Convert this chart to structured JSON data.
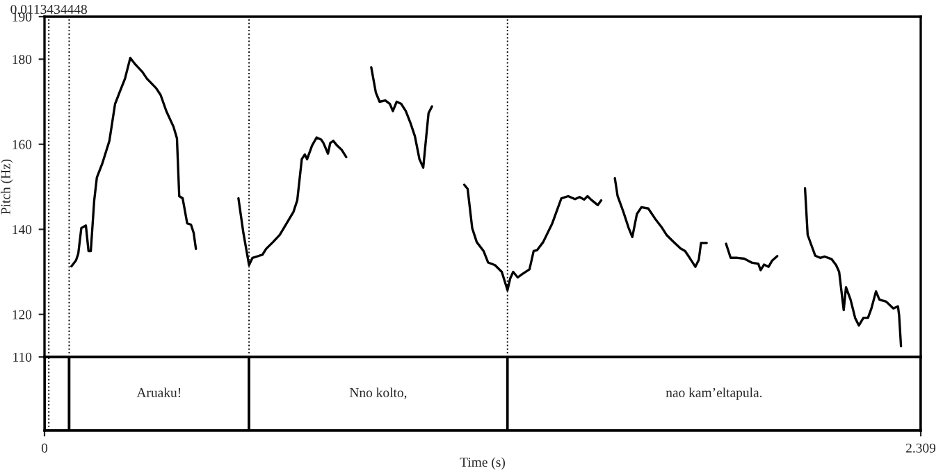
{
  "chart_data": [
    {
      "type": "line",
      "ylabel": "Pitch (Hz)",
      "xlim": [
        0,
        2.309
      ],
      "ylim": [
        110,
        190
      ],
      "yticks": [
        110,
        120,
        140,
        160,
        180,
        190
      ],
      "tick_labels": "y",
      "grid": false,
      "marker": "none",
      "line_style": "solid",
      "ref_lines": [
        {
          "axis": "x",
          "value": 0.0113434448,
          "label": "0.0113434448",
          "line_style": "dotted",
          "color": "#000000"
        },
        {
          "axis": "x",
          "value": 0.065,
          "line_style": "dotted",
          "color": "#000000"
        },
        {
          "axis": "x",
          "value": 0.539,
          "line_style": "dotted",
          "color": "#000000"
        },
        {
          "axis": "x",
          "value": 1.22,
          "line_style": "dotted",
          "color": "#000000"
        }
      ],
      "series": [
        {
          "color": "#000000",
          "x": [
            0.071,
            0.083,
            0.089,
            0.097,
            0.109,
            0.116,
            0.122,
            0.131,
            0.138,
            0.152,
            0.171,
            0.186,
            0.2,
            0.212,
            0.226,
            0.24,
            0.258,
            0.27,
            0.294,
            0.306,
            0.321,
            0.34,
            0.349,
            0.355,
            0.364,
            0.376,
            0.386,
            0.393,
            0.399,
            0.45,
            0.511,
            0.524,
            0.539,
            0.548,
            0.566,
            0.574,
            0.584,
            0.602,
            0.62,
            0.638,
            0.656,
            0.666,
            0.678,
            0.686,
            0.692,
            0.705,
            0.717,
            0.729,
            0.735,
            0.747,
            0.753,
            0.761,
            0.771,
            0.783,
            0.795,
            0.83,
            0.861,
            0.873,
            0.883,
            0.898,
            0.91,
            0.918,
            0.928,
            0.94,
            0.952,
            0.964,
            0.976,
            0.988,
            0.998,
            1.006,
            1.012,
            1.021,
            1.06,
            1.106,
            1.115,
            1.127,
            1.139,
            1.157,
            1.169,
            1.187,
            1.205,
            1.22,
            1.227,
            1.235,
            1.247,
            1.259,
            1.278,
            1.289,
            1.298,
            1.314,
            1.338,
            1.362,
            1.38,
            1.398,
            1.41,
            1.422,
            1.431,
            1.44,
            1.458,
            1.467,
            1.485,
            1.503,
            1.51,
            1.525,
            1.539,
            1.549,
            1.561,
            1.573,
            1.591,
            1.609,
            1.627,
            1.639,
            1.657,
            1.676,
            1.688,
            1.7,
            1.715,
            1.724,
            1.73,
            1.745,
            1.77,
            1.796,
            1.808,
            1.826,
            1.844,
            1.863,
            1.881,
            1.887,
            1.896,
            1.908,
            1.917,
            1.931,
            1.97,
            2.004,
            2.011,
            2.031,
            2.044,
            2.056,
            2.074,
            2.086,
            2.094,
            2.106,
            2.112,
            2.124,
            2.136,
            2.146,
            2.158,
            2.17,
            2.179,
            2.191,
            2.2,
            2.218,
            2.237,
            2.249,
            2.252,
            2.257
          ],
          "values": [
            131.3,
            132.7,
            134.3,
            140.3,
            140.9,
            134.9,
            134.9,
            146.8,
            152.2,
            155.4,
            160.8,
            169.5,
            172.7,
            175.4,
            180.3,
            178.7,
            177.0,
            175.4,
            173.2,
            171.6,
            167.8,
            164.1,
            161.4,
            147.8,
            147.3,
            141.4,
            141.1,
            139.2,
            135.4,
            null,
            147.3,
            139.2,
            131.6,
            133.3,
            133.8,
            134.0,
            135.4,
            137.0,
            138.7,
            141.4,
            144.1,
            146.8,
            156.5,
            157.6,
            156.5,
            159.7,
            161.6,
            161.1,
            160.3,
            157.8,
            160.3,
            160.8,
            159.7,
            158.7,
            157.0,
            null,
            178.1,
            172.2,
            170.0,
            170.3,
            169.5,
            167.8,
            170.0,
            169.5,
            167.8,
            165.1,
            161.9,
            156.5,
            154.5,
            161.9,
            167.3,
            168.9,
            null,
            150.5,
            149.5,
            140.3,
            137.0,
            134.9,
            132.2,
            131.6,
            130.0,
            125.7,
            128.4,
            130.0,
            128.7,
            129.5,
            130.6,
            134.9,
            135.1,
            137.0,
            141.4,
            147.3,
            147.8,
            147.1,
            147.6,
            147.0,
            147.8,
            147.0,
            145.7,
            146.8,
            null,
            152.0,
            147.9,
            144.2,
            140.4,
            138.2,
            143.6,
            145.2,
            144.9,
            142.5,
            140.4,
            138.7,
            137.1,
            135.5,
            134.9,
            133.3,
            131.2,
            132.8,
            136.8,
            136.8,
            null,
            136.6,
            133.3,
            133.3,
            133.1,
            132.2,
            131.9,
            130.4,
            131.7,
            131.2,
            132.6,
            133.7,
            null,
            149.7,
            138.7,
            133.8,
            133.3,
            133.6,
            133.0,
            131.6,
            130.0,
            121.0,
            126.4,
            123.5,
            119.2,
            117.4,
            119.2,
            119.2,
            121.4,
            125.4,
            123.5,
            123.0,
            121.4,
            121.9,
            119.8,
            112.5
          ]
        }
      ]
    },
    {
      "type": "bar",
      "orientation": "horizontal",
      "stacked": true,
      "categories": [
        null
      ],
      "xlabel": "Time (s)",
      "xlim": [
        0,
        2.309
      ],
      "xticks": [
        0,
        {
          "value": 2.309,
          "label": "2.309"
        }
      ],
      "tick_labels": "x",
      "ref_lines": [
        {
          "axis": "x",
          "value": 0.0113434448,
          "line_style": "dotted",
          "color": "#000000"
        }
      ],
      "series": [
        {
          "color": "#ffffff",
          "values": [
            0.065
          ]
        },
        {
          "name": "Aruaku!",
          "color": "#ffffff",
          "values": [
            0.474
          ]
        },
        {
          "name": "Nno kolto,",
          "color": "#ffffff",
          "values": [
            0.681
          ]
        },
        {
          "name": "nao kam’eltapula.",
          "color": "#ffffff",
          "values": [
            1.089
          ]
        }
      ]
    }
  ]
}
